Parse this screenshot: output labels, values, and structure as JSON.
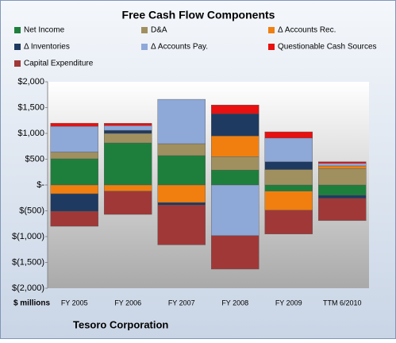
{
  "chart_data": {
    "type": "bar",
    "stacked": true,
    "title": "Free Cash Flow Components",
    "y_label": "$ millions",
    "footer": "Tesoro Corporation",
    "categories": [
      "FY 2005",
      "FY 2006",
      "FY 2007",
      "FY 2008",
      "FY 2009",
      "TTM 6/2010"
    ],
    "series": [
      {
        "name": "Net Income",
        "color": "#1e7f3c",
        "values": [
          508,
          815,
          570,
          290,
          -120,
          -200
        ]
      },
      {
        "name": "D&A",
        "color": "#a09060",
        "values": [
          130,
          185,
          230,
          260,
          300,
          320
        ]
      },
      {
        "name": "Δ Accounts Rec.",
        "color": "#f07f10",
        "values": [
          -170,
          -120,
          -340,
          400,
          -370,
          50
        ]
      },
      {
        "name": "Δ Inventories",
        "color": "#1f3a60",
        "values": [
          -340,
          60,
          -50,
          430,
          150,
          -60
        ]
      },
      {
        "name": "Δ Accounts Pay.",
        "color": "#8ea8d8",
        "values": [
          500,
          90,
          860,
          -980,
          460,
          50
        ]
      },
      {
        "name": "Questionable Cash Sources",
        "color": "#e81010",
        "values": [
          60,
          45,
          0,
          170,
          120,
          30
        ]
      },
      {
        "name": "Capital Expenditure",
        "color": "#a03838",
        "values": [
          -290,
          -450,
          -770,
          -650,
          -460,
          -430
        ]
      }
    ],
    "ylim": [
      -2000,
      2000
    ],
    "yticks": [
      {
        "value": 2000,
        "label": "$2,000"
      },
      {
        "value": 1500,
        "label": "$1,500"
      },
      {
        "value": 1000,
        "label": "$1,000"
      },
      {
        "value": 500,
        "label": "$500"
      },
      {
        "value": 0,
        "label": "$-"
      },
      {
        "value": -500,
        "label": "$(500)"
      },
      {
        "value": -1000,
        "label": "$(1,000)"
      },
      {
        "value": -1500,
        "label": "$(1,500)"
      },
      {
        "value": -2000,
        "label": "$(2,000)"
      }
    ]
  }
}
